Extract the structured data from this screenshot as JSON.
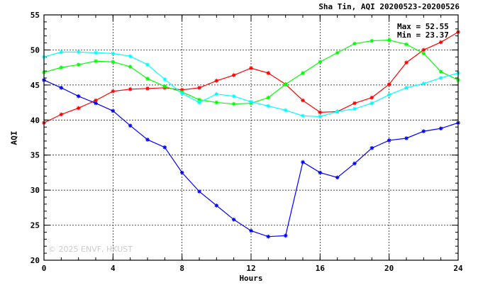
{
  "chart_data": {
    "type": "line",
    "title": "Sha Tin, AQI 20200523-20200526",
    "xlabel": "Hours",
    "ylabel": "AQI",
    "xlim": [
      0,
      24
    ],
    "ylim": [
      20,
      55
    ],
    "xticks": [
      0,
      4,
      8,
      12,
      16,
      20,
      24
    ],
    "yticks": [
      20,
      25,
      30,
      35,
      40,
      45,
      50,
      55
    ],
    "grid": true,
    "stats": {
      "max": "Max = 52.55",
      "min": "Min = 23.37"
    },
    "x": [
      0,
      1,
      2,
      3,
      4,
      5,
      6,
      7,
      8,
      9,
      10,
      11,
      12,
      13,
      14,
      15,
      16,
      17,
      18,
      19,
      20,
      21,
      22,
      23,
      24
    ],
    "series": [
      {
        "color": "#ff0000",
        "values": [
          39.6,
          40.8,
          41.7,
          42.8,
          44.1,
          44.4,
          44.5,
          44.6,
          44.3,
          44.6,
          45.6,
          46.4,
          47.4,
          46.7,
          45.1,
          42.8,
          41.1,
          41.2,
          42.4,
          43.2,
          45.1,
          48.2,
          50.0,
          51.1,
          52.55
        ]
      },
      {
        "color": "#00ff00",
        "values": [
          46.8,
          47.5,
          47.9,
          48.4,
          48.3,
          47.6,
          45.9,
          44.8,
          44.0,
          42.9,
          42.5,
          42.3,
          42.4,
          43.2,
          45.1,
          46.7,
          48.3,
          49.6,
          50.9,
          51.3,
          51.4,
          50.8,
          49.5,
          46.9,
          45.7
        ]
      },
      {
        "color": "#00ffff",
        "values": [
          49.0,
          49.7,
          49.7,
          49.6,
          49.5,
          49.1,
          47.9,
          45.8,
          43.8,
          42.5,
          43.7,
          43.4,
          42.6,
          42.0,
          41.4,
          40.6,
          40.5,
          41.2,
          41.6,
          42.4,
          43.6,
          44.6,
          45.2,
          46.0,
          46.7
        ]
      },
      {
        "color": "#0000ff",
        "values": [
          45.7,
          44.6,
          43.4,
          42.4,
          41.3,
          39.2,
          37.2,
          36.1,
          32.5,
          29.8,
          27.8,
          25.8,
          24.2,
          23.37,
          23.5,
          34.0,
          32.5,
          31.8,
          33.8,
          36.0,
          37.1,
          37.4,
          38.4,
          38.8,
          39.6
        ]
      }
    ]
  },
  "watermark": "© 2025  ENVF, HKUST"
}
